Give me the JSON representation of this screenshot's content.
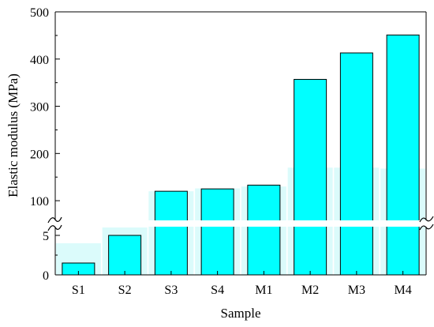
{
  "chart_data": {
    "type": "bar",
    "xlabel": "Sample",
    "ylabel": "Elastic modulus (MPa)",
    "categories": [
      "S1",
      "S2",
      "S3",
      "S4",
      "M1",
      "M2",
      "M3",
      "M4"
    ],
    "values": [
      1.5,
      5,
      120,
      125,
      133,
      357,
      413,
      451
    ],
    "y_axis_break": {
      "lower_segment": {
        "ylim": [
          0,
          6
        ],
        "ticks": [
          0,
          5
        ]
      },
      "upper_segment": {
        "ylim": [
          60,
          500
        ],
        "ticks": [
          100,
          200,
          300,
          400,
          500
        ]
      }
    },
    "colors": {
      "bar_fill": "#00FFFF",
      "bar_stroke": "#000000",
      "ghost_bar": "#BDF7F7"
    }
  }
}
